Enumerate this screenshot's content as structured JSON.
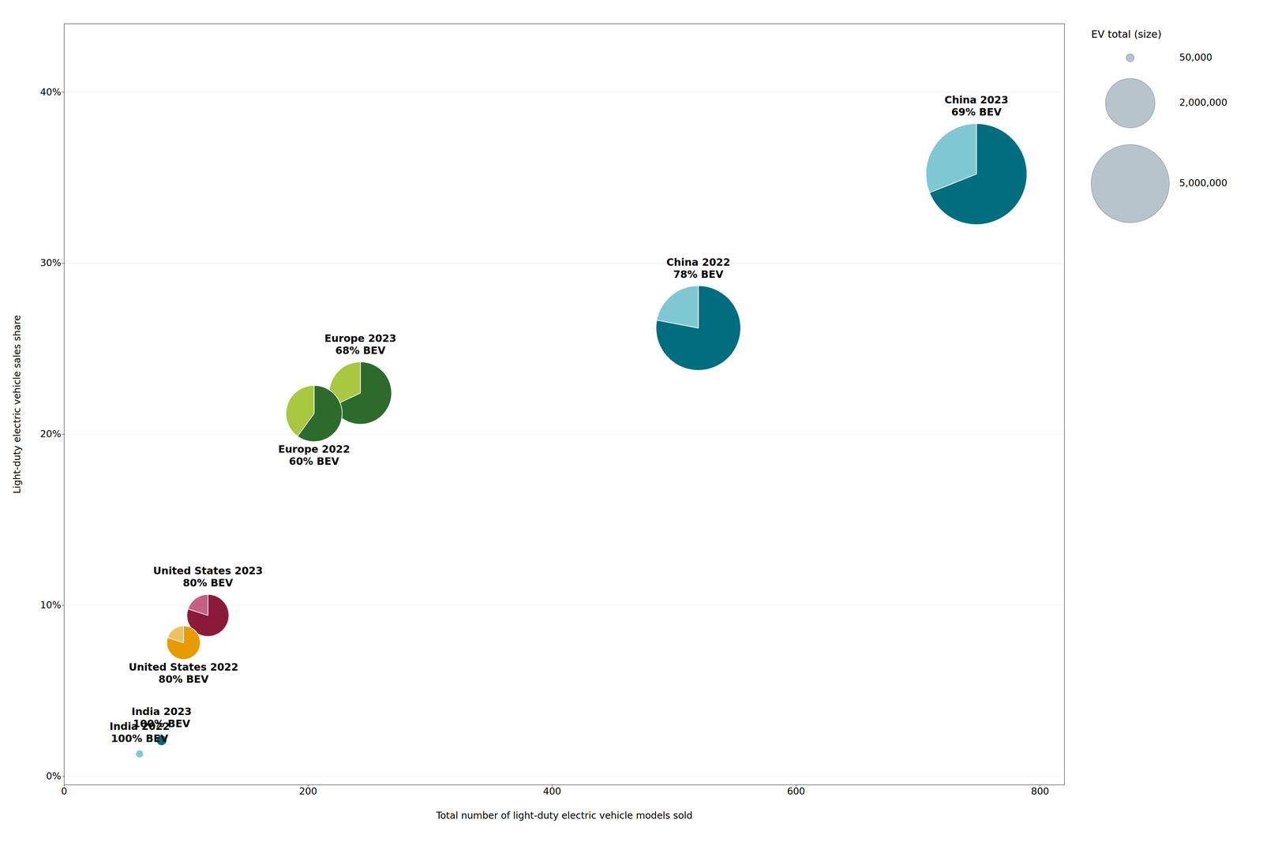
{
  "chart_data": {
    "type": "scatter",
    "xlabel": "Total number of light-duty electric vehicle models sold",
    "ylabel": "Light-duty electric vehicle sales share",
    "xlim": [
      0,
      820
    ],
    "ylim": [
      -0.005,
      0.44
    ],
    "xticks": [
      0,
      200,
      400,
      600,
      800
    ],
    "yticks": [
      {
        "value": 0,
        "label": "0%"
      },
      {
        "value": 0.1,
        "label": "10%"
      },
      {
        "value": 0.2,
        "label": "20%"
      },
      {
        "value": 0.3,
        "label": "30%"
      },
      {
        "value": 0.4,
        "label": "40%"
      }
    ],
    "grid": true,
    "legend": "right",
    "points": [
      {
        "label": "China 2023",
        "x": 748,
        "y": 0.352,
        "size": 8400000,
        "bev": 69,
        "phev": 31,
        "bev_label": "69% BEV",
        "colors": [
          "#006e7f",
          "#7ec8d4"
        ]
      },
      {
        "label": "China 2022",
        "x": 520,
        "y": 0.262,
        "size": 5900000,
        "bev": 78,
        "phev": 22,
        "bev_label": "78% BEV",
        "colors": [
          "#006e7f",
          "#7ec8d4"
        ]
      },
      {
        "label": "Europe 2023",
        "x": 243,
        "y": 0.224,
        "size": 3200000,
        "bev": 68,
        "phev": 32,
        "bev_label": "68% BEV",
        "colors": [
          "#2d6b2d",
          "#a8c840"
        ]
      },
      {
        "label": "Europe 2022",
        "x": 205,
        "y": 0.212,
        "size": 2600000,
        "bev": 60,
        "phev": 40,
        "bev_label": "60% BEV",
        "colors": [
          "#2d6b2d",
          "#a8c840"
        ]
      },
      {
        "label": "United States 2023",
        "x": 118,
        "y": 0.094,
        "size": 1450000,
        "bev": 80,
        "phev": 20,
        "bev_label": "80% BEV",
        "colors": [
          "#8b1a3a",
          "#c46080"
        ]
      },
      {
        "label": "United States 2022",
        "x": 98,
        "y": 0.078,
        "size": 920000,
        "bev": 80,
        "phev": 20,
        "bev_label": "80% BEV",
        "colors": [
          "#e89b00",
          "#f0c060"
        ]
      },
      {
        "label": "India 2023",
        "x": 80,
        "y": 0.021,
        "size": 90000,
        "bev": 100,
        "phev": 0,
        "bev_label": "100% BEV",
        "colors": [
          "#006e7f",
          "#006e7f"
        ]
      },
      {
        "label": "India 2022",
        "x": 62,
        "y": 0.013,
        "size": 50000,
        "bev": 100,
        "phev": 0,
        "bev_label": "100% BEV",
        "colors": [
          "#7ec8d4",
          "#7ec8d4"
        ]
      }
    ],
    "size_legend": {
      "title": "EV total (size)",
      "sizes": [
        {
          "value": 50000,
          "label": "50,000"
        },
        {
          "value": 2000000,
          "label": "2,000,000"
        },
        {
          "value": 5000000,
          "label": "5,000,000"
        }
      ]
    }
  }
}
